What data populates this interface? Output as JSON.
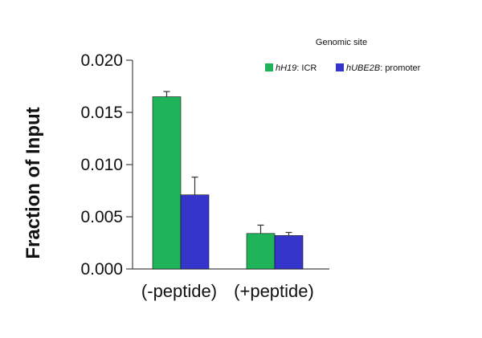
{
  "chart_data": {
    "type": "bar",
    "title": "",
    "xlabel": "",
    "ylabel": "Fraction  of  Input",
    "ylim": [
      0,
      0.02
    ],
    "yticks": [
      "0.000",
      "0.005",
      "0.010",
      "0.015",
      "0.020"
    ],
    "ytick_values": [
      0,
      0.005,
      0.01,
      0.015,
      0.02
    ],
    "categories": [
      "(-peptide)",
      "(+peptide)"
    ],
    "legend": {
      "title": "Genomic site",
      "position": "top-right"
    },
    "series": [
      {
        "name": "hH19: ICR",
        "name_italic": "hH19",
        "name_rest": ": ICR",
        "color": "#1fb45a",
        "values": [
          0.0165,
          0.0034
        ],
        "errors": [
          0.0005,
          0.0008
        ]
      },
      {
        "name": "hUBE2B: promoter",
        "name_italic": "hUBE2B",
        "name_rest": ": promoter",
        "color": "#3535cc",
        "values": [
          0.0071,
          0.0032
        ],
        "errors": [
          0.0017,
          0.0003
        ]
      }
    ],
    "grid": false
  }
}
